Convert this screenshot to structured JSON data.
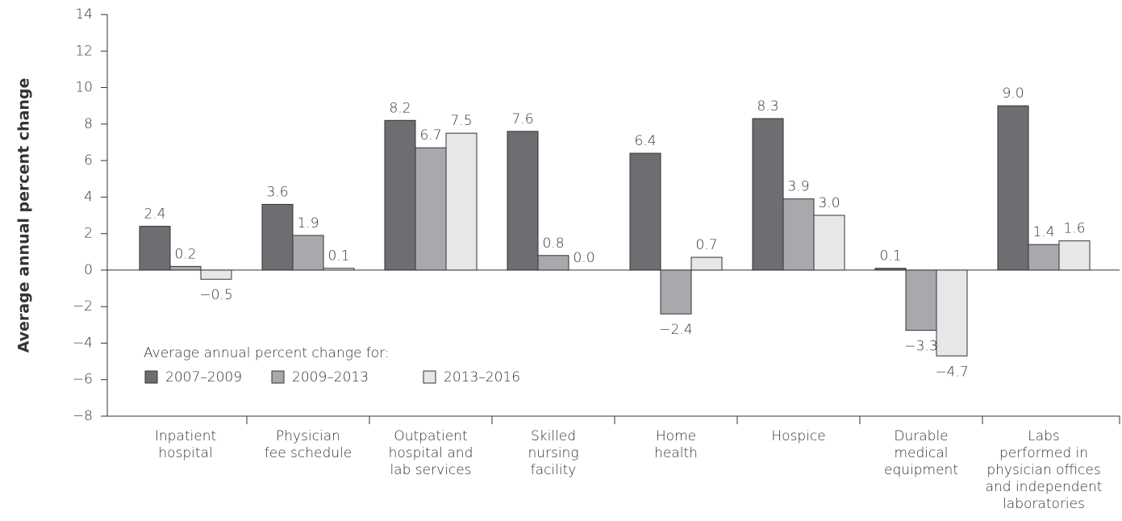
{
  "chart_data": {
    "type": "bar",
    "y_label": "Average annual percent change",
    "legend_title": "Average annual percent change for:",
    "categories": [
      [
        "Inpatient",
        "hospital"
      ],
      [
        "Physician",
        "fee schedule"
      ],
      [
        "Outpatient",
        "hospital and",
        "lab services"
      ],
      [
        "Skilled",
        "nursing",
        "facility"
      ],
      [
        "Home",
        "health"
      ],
      [
        "Hospice"
      ],
      [
        "Durable",
        "medical",
        "equipment"
      ],
      [
        "Labs",
        "performed in",
        "physician offices",
        "and independent",
        "laboratories"
      ]
    ],
    "series": [
      {
        "name": "2007–2009",
        "color": "#6d6e71",
        "values": [
          2.4,
          3.6,
          8.2,
          7.6,
          6.4,
          8.3,
          0.1,
          9.0
        ],
        "value_labels": [
          "2.4",
          "3.6",
          "8.2",
          "7.6",
          "6.4",
          "8.3",
          "0.1",
          "9.0"
        ]
      },
      {
        "name": "2009–2013",
        "color": "#a7a9ac",
        "values": [
          0.2,
          1.9,
          6.7,
          0.8,
          -2.4,
          3.9,
          -3.3,
          1.4
        ],
        "value_labels": [
          "0.2",
          "1.9",
          "6.7",
          "0.8",
          "−2.4",
          "3.9",
          "−3.3",
          "1.4"
        ]
      },
      {
        "name": "2013–2016",
        "color": "#e6e7e8",
        "values": [
          -0.5,
          0.1,
          7.5,
          0.0,
          0.7,
          3.0,
          -4.7,
          1.6
        ],
        "value_labels": [
          "−0.5",
          "0.1",
          "7.5",
          "0.0",
          "0.7",
          "3.0",
          "−4.7",
          "1.6"
        ]
      }
    ],
    "ylim": [
      -8,
      14
    ],
    "yticks": [
      {
        "value": -8,
        "label": "−8"
      },
      {
        "value": -6,
        "label": "−6"
      },
      {
        "value": -4,
        "label": "−4"
      },
      {
        "value": -2,
        "label": "−2"
      },
      0,
      2,
      4,
      6,
      8,
      10,
      12,
      14
    ]
  }
}
